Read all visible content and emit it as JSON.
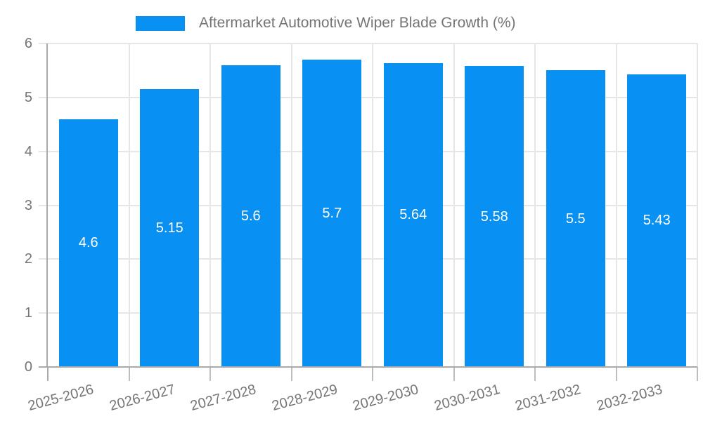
{
  "legend": {
    "label": "Aftermarket Automotive Wiper Blade Growth (%)"
  },
  "chart_data": {
    "type": "bar",
    "title": "Aftermarket Automotive Wiper Blade Growth (%)",
    "categories": [
      "2025-2026",
      "2026-2027",
      "2027-2028",
      "2028-2029",
      "2029-2030",
      "2030-2031",
      "2031-2032",
      "2032-2033"
    ],
    "values": [
      4.6,
      5.15,
      5.6,
      5.7,
      5.64,
      5.58,
      5.5,
      5.43
    ],
    "value_labels": [
      "4.6",
      "5.15",
      "5.6",
      "5.7",
      "5.64",
      "5.58",
      "5.5",
      "5.43"
    ],
    "xlabel": "",
    "ylabel": "",
    "ylim": [
      0,
      6
    ],
    "ytick_interval": 1,
    "ytick_labels": [
      "0",
      "1",
      "2",
      "3",
      "4",
      "5",
      "6"
    ],
    "grid": true,
    "legend_position": "top",
    "x_label_rotation_deg": -15,
    "value_labels_inside_bars": true,
    "colors": {
      "bar": "#0891f2",
      "grid": "#e6e6e6",
      "axis": "#aaaaaa",
      "tick": "#bdbdbd",
      "text": "#757575",
      "value_label": "#ffffff",
      "background": "#ffffff"
    }
  }
}
